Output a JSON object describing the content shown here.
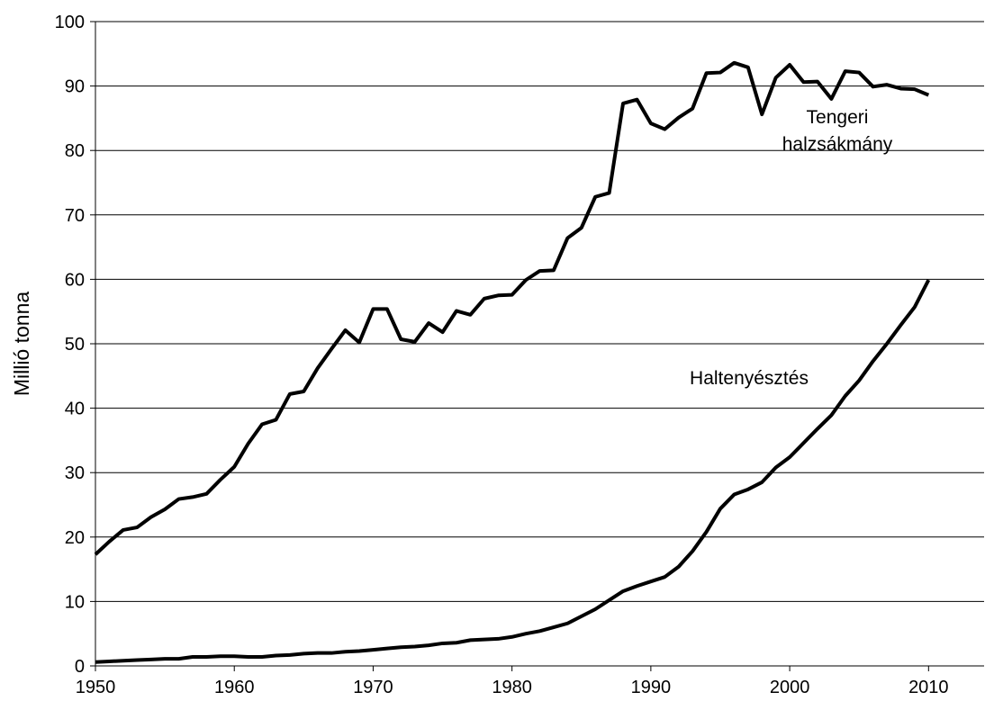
{
  "chart_data": {
    "type": "line",
    "ylabel": "Millió tonna",
    "x": [
      1950,
      1951,
      1952,
      1953,
      1954,
      1955,
      1956,
      1957,
      1958,
      1959,
      1960,
      1961,
      1962,
      1963,
      1964,
      1965,
      1966,
      1967,
      1968,
      1969,
      1970,
      1971,
      1972,
      1973,
      1974,
      1975,
      1976,
      1977,
      1978,
      1979,
      1980,
      1981,
      1982,
      1983,
      1984,
      1985,
      1986,
      1987,
      1988,
      1989,
      1990,
      1991,
      1992,
      1993,
      1994,
      1995,
      1996,
      1997,
      1998,
      1999,
      2000,
      2001,
      2002,
      2003,
      2004,
      2005,
      2006,
      2007,
      2008,
      2009,
      2010
    ],
    "series": [
      {
        "name": "Tengeri halzsákmány",
        "color": "#000000",
        "values": [
          17.3,
          19.3,
          21.1,
          21.5,
          23.1,
          24.3,
          25.9,
          26.2,
          26.7,
          28.9,
          30.9,
          34.5,
          37.5,
          38.2,
          42.2,
          42.6,
          46.2,
          49.2,
          52.1,
          50.2,
          55.4,
          55.4,
          50.7,
          50.3,
          53.2,
          51.8,
          55.1,
          54.5,
          57.0,
          57.5,
          57.6,
          59.9,
          61.3,
          61.4,
          66.4,
          68.0,
          72.8,
          73.4,
          87.3,
          87.9,
          84.2,
          83.3,
          85.1,
          86.5,
          92.0,
          92.1,
          93.6,
          92.9,
          85.6,
          91.3,
          93.3,
          90.6,
          90.7,
          88.0,
          92.3,
          92.1,
          89.9,
          90.2,
          89.6,
          89.5,
          88.6
        ]
      },
      {
        "name": "Haltenyésztés",
        "color": "#000000",
        "values": [
          0.6,
          0.7,
          0.8,
          0.9,
          1.0,
          1.1,
          1.1,
          1.4,
          1.4,
          1.5,
          1.5,
          1.4,
          1.4,
          1.6,
          1.7,
          1.9,
          2.0,
          2.0,
          2.2,
          2.3,
          2.5,
          2.7,
          2.9,
          3.0,
          3.2,
          3.5,
          3.6,
          4.0,
          4.1,
          4.2,
          4.5,
          5.0,
          5.4,
          6.0,
          6.6,
          7.7,
          8.8,
          10.2,
          11.6,
          12.4,
          13.1,
          13.8,
          15.4,
          17.8,
          20.8,
          24.4,
          26.6,
          27.4,
          28.5,
          30.8,
          32.4,
          34.6,
          36.8,
          38.9,
          41.9,
          44.3,
          47.3,
          50.0,
          52.9,
          55.7,
          59.9
        ]
      }
    ],
    "xlim": [
      1950,
      2014
    ],
    "xticks": [
      1950,
      1960,
      1970,
      1980,
      1990,
      2000,
      2010
    ],
    "ylim": [
      0,
      100
    ],
    "yticks": [
      0,
      10,
      20,
      30,
      40,
      50,
      60,
      70,
      80,
      90,
      100
    ],
    "grid": true
  }
}
